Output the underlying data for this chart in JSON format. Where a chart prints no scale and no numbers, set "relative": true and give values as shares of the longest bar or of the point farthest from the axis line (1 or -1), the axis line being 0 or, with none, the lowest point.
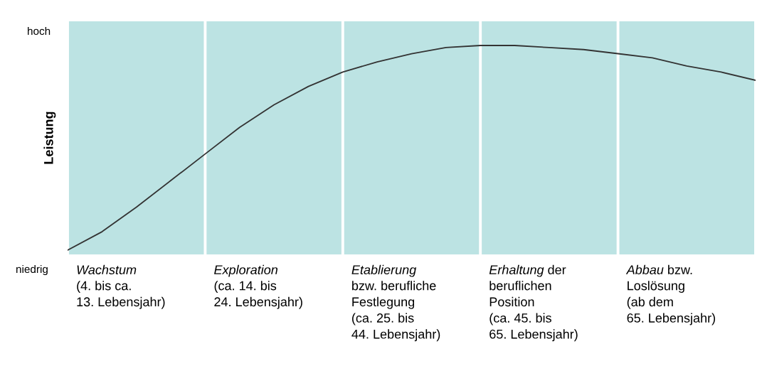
{
  "chart_data": {
    "type": "line",
    "relative": true,
    "ylabel": "Leistung",
    "categories": [
      null,
      null,
      null,
      null,
      null,
      null,
      null,
      null,
      null,
      null,
      null,
      null,
      null,
      null,
      null,
      null,
      null,
      null,
      null,
      null,
      null
    ],
    "series": [
      {
        "color": "#333333",
        "values": [
          0.0,
          0.09,
          0.21,
          0.34,
          0.47,
          0.6,
          0.71,
          0.8,
          0.87,
          0.92,
          0.96,
          0.99,
          1.0,
          1.0,
          0.99,
          0.98,
          0.96,
          0.94,
          0.9,
          0.87,
          0.83
        ]
      }
    ],
    "annotations": [
      "hoch",
      "niedrig",
      "Wachstum\n(4. bis ca.\n13. Lebensjahr)",
      "Exploration\n(ca. 14. bis\n24. Lebensjahr)",
      "Etablierung\nbzw. berufliche\nFestlegung\n(ca. 25. bis\n44. Lebensjahr)",
      "Erhaltung der\nberuflichen\nPosition\n(ca. 45. bis\n65. Lebensjahr)",
      "Abbau bzw.\nLoslösung\n(ab dem\n65. Lebensjahr)"
    ],
    "legend": false,
    "marker": "none",
    "line_style": "solid"
  }
}
